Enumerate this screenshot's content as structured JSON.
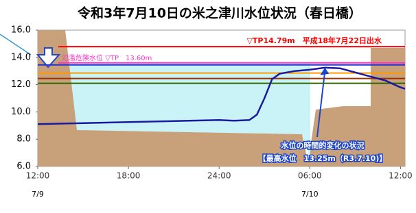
{
  "chart_data": {
    "type": "line",
    "title": "令和3年7月10日の米之津川水位状況（春日橋）",
    "x": [
      0,
      2,
      4,
      6,
      8,
      10,
      12,
      13,
      14,
      14.5,
      15,
      15.5,
      16,
      17,
      18,
      19,
      20,
      21,
      22,
      23,
      24,
      24.3
    ],
    "values": [
      9.1,
      9.15,
      9.2,
      9.25,
      9.3,
      9.35,
      9.4,
      9.35,
      9.4,
      9.8,
      11.0,
      12.4,
      12.8,
      13.0,
      13.1,
      13.25,
      13.2,
      12.9,
      12.6,
      12.3,
      11.8,
      11.7
    ],
    "color": "#1a1aa0",
    "xlim": [
      0,
      24.3
    ],
    "xticks": [
      {
        "value": 0,
        "label": "12:00"
      },
      {
        "value": 6,
        "label": "18:00"
      },
      {
        "value": 12,
        "label": "24:00"
      },
      {
        "value": 18,
        "label": "06:00"
      },
      {
        "value": 24,
        "label": "12:00"
      }
    ],
    "date_labels": [
      {
        "value": 0,
        "label": "7/9"
      },
      {
        "value": 18,
        "label": "7/10"
      }
    ],
    "ylim": [
      6.0,
      16.0
    ],
    "yticks": [
      {
        "value": 6,
        "label": "6.0"
      },
      {
        "value": 8,
        "label": "8.0"
      },
      {
        "value": 10,
        "label": "10.0"
      },
      {
        "value": 12,
        "label": "12.0"
      },
      {
        "value": 14,
        "label": "14.0"
      },
      {
        "value": 16,
        "label": "16.0"
      }
    ],
    "reference_lines": [
      {
        "value": 14.79,
        "color": "#ff0000",
        "label": "▽TP14.79m　平成18年7月22日出水"
      },
      {
        "value": 13.6,
        "color": "#ff33cc",
        "label": "氾濫危険水位 ▽TP　13.60m"
      },
      {
        "value": 13.45,
        "color": "#2233cc"
      },
      {
        "value": 12.85,
        "color": "#ff9900"
      },
      {
        "value": 12.45,
        "color": "#993300"
      },
      {
        "value": 12.1,
        "color": "#336600"
      }
    ],
    "annotations": [
      "水位の時間的変化の状況",
      "【最高水位　13.25m（R3.7.10)】"
    ]
  }
}
